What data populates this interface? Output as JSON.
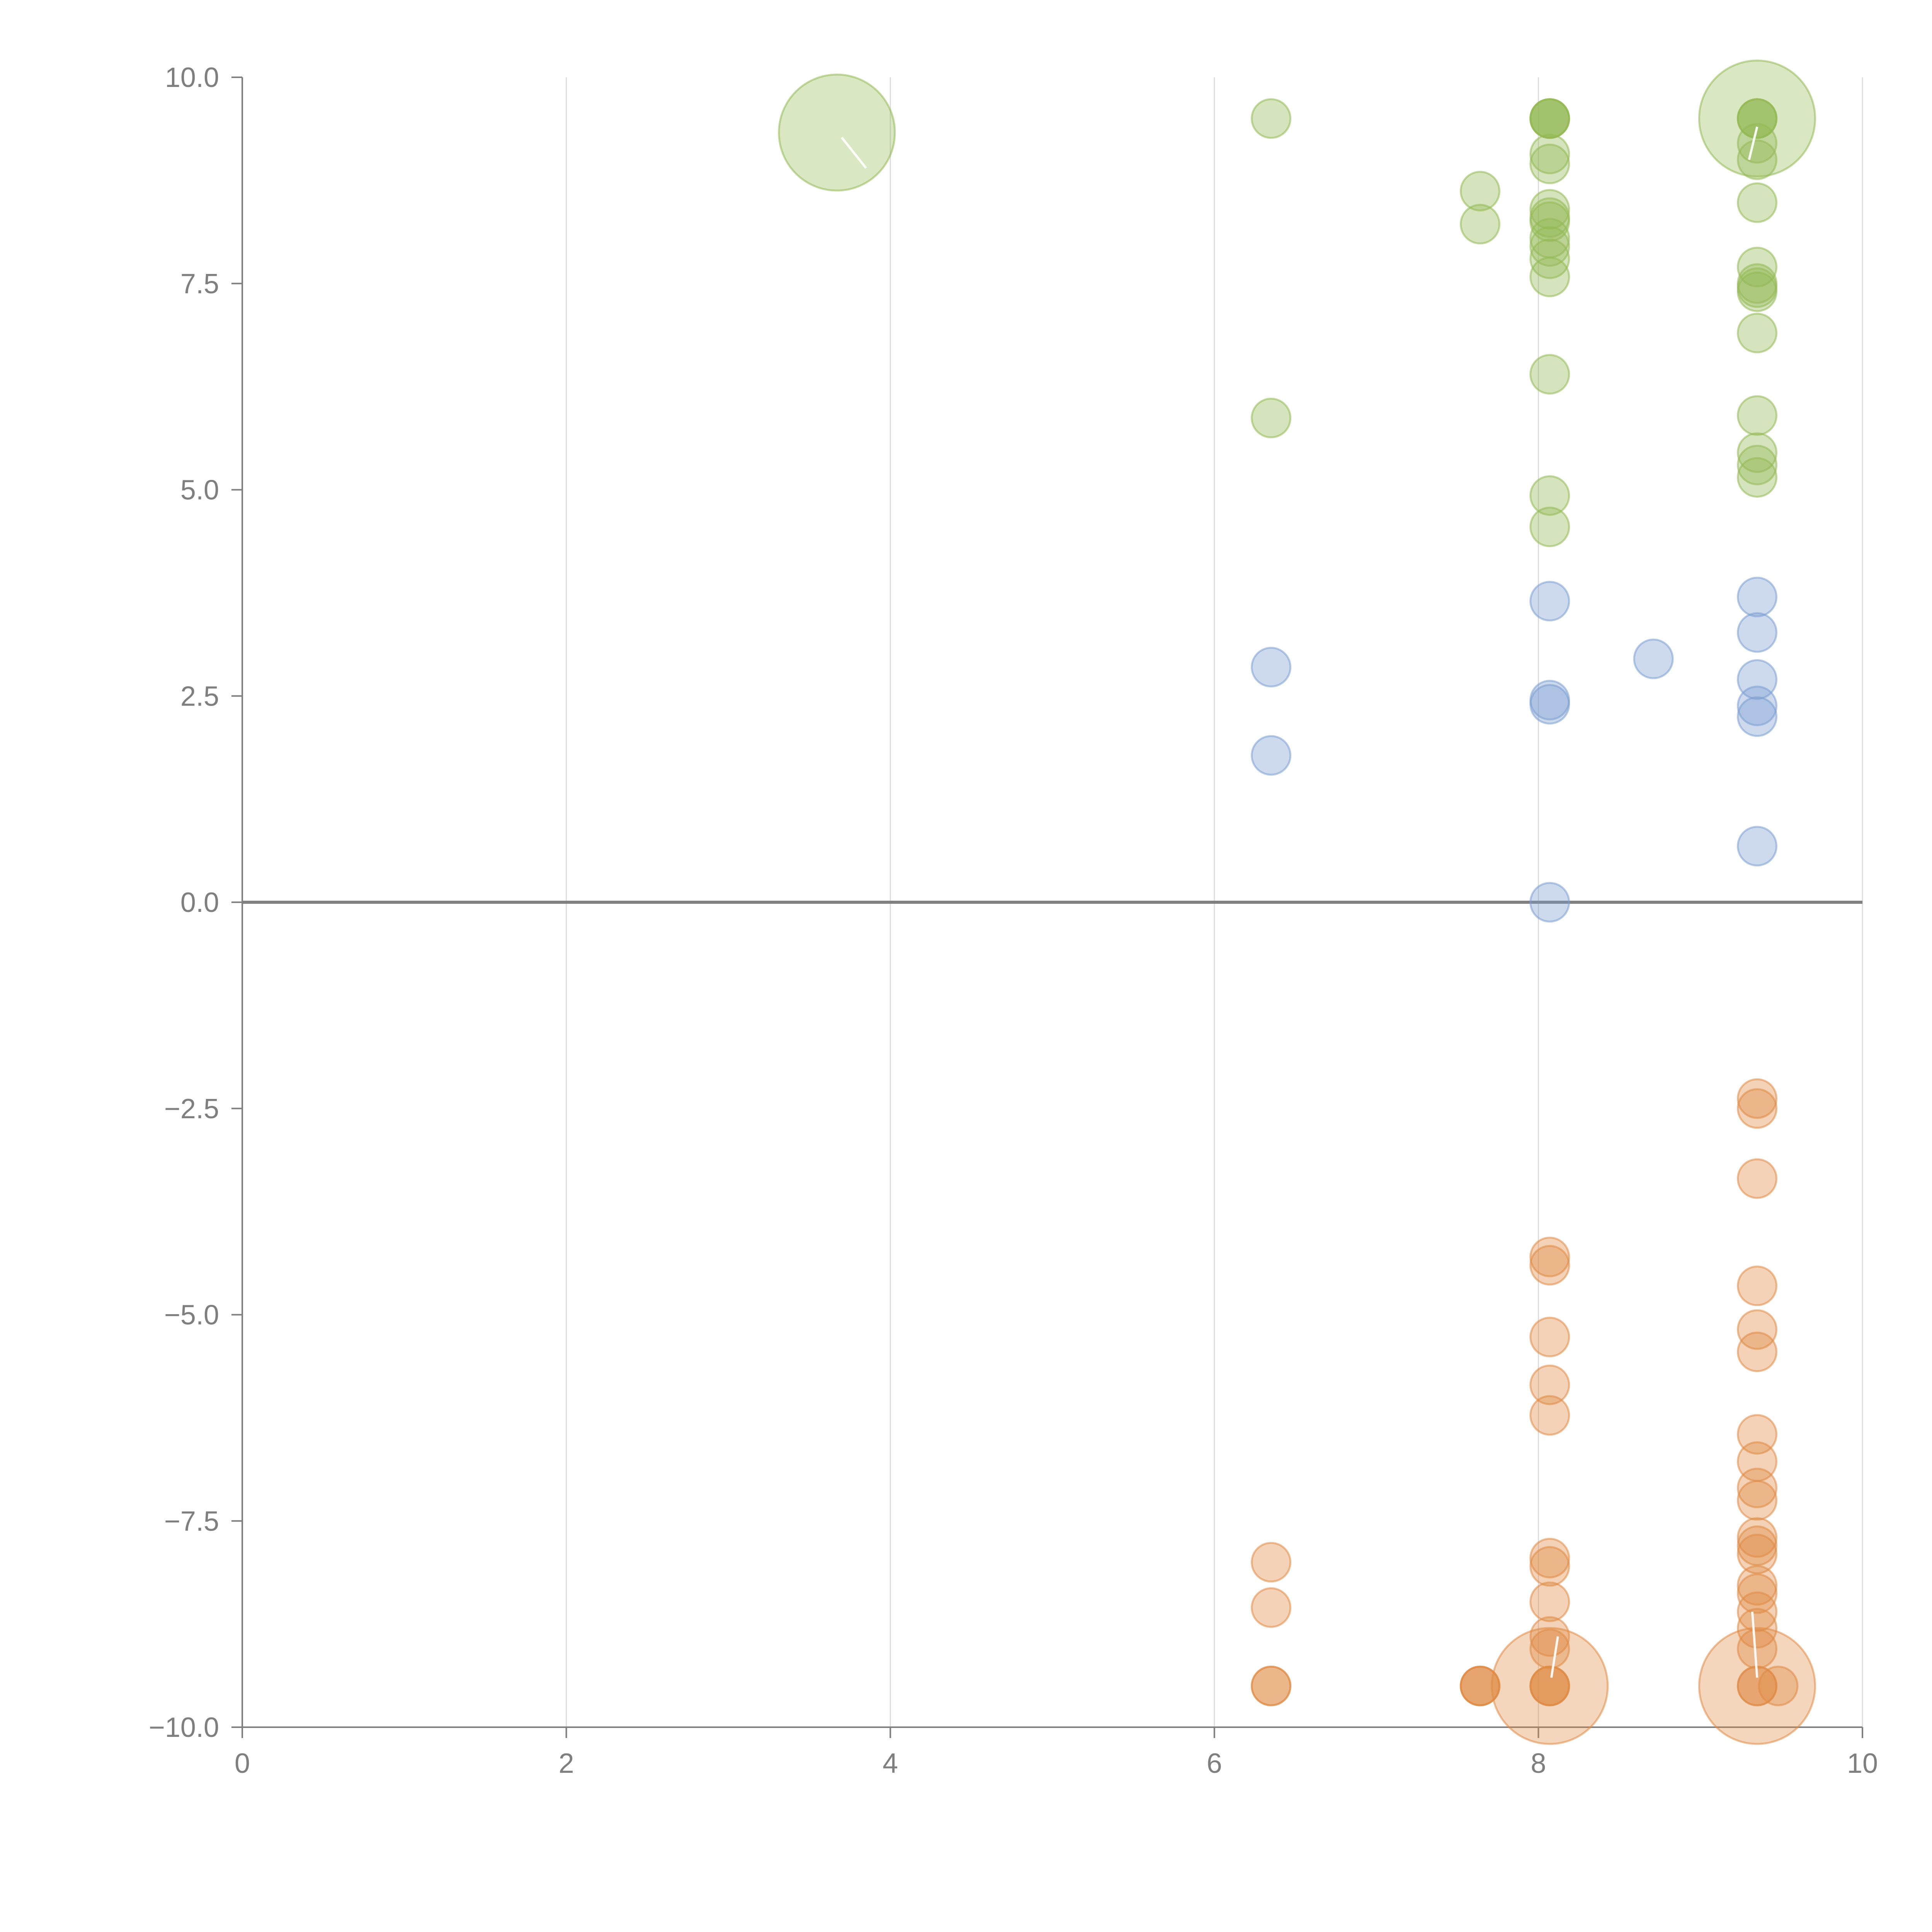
{
  "chart_data": {
    "type": "scatter",
    "title": "",
    "xlabel": "",
    "ylabel": "",
    "xlim": [
      0,
      10
    ],
    "ylim": [
      -10,
      10
    ],
    "x_ticks": [
      "0",
      "2",
      "4",
      "6",
      "8",
      "10"
    ],
    "y_ticks": [
      "10.0",
      "7.5",
      "5.0",
      "2.5",
      "0.0",
      "−2.5",
      "−5.0",
      "−7.5",
      "−10.0"
    ],
    "x_grid": true,
    "y_grid": false,
    "legend": "none",
    "colors": {
      "green": "#93b954",
      "blue": "#7b9fd2",
      "orange": "#e08a43"
    },
    "series": [
      {
        "color": "green",
        "points": [
          {
            "x": 3.67,
            "y": 9.33,
            "size": 3
          },
          {
            "x": 6.35,
            "y": 9.5
          },
          {
            "x": 6.35,
            "y": 5.87
          },
          {
            "x": 7.64,
            "y": 8.62
          },
          {
            "x": 7.64,
            "y": 8.22
          },
          {
            "x": 8.07,
            "y": 9.5
          },
          {
            "x": 8.07,
            "y": 9.5
          },
          {
            "x": 8.07,
            "y": 9.5
          },
          {
            "x": 8.07,
            "y": 9.5
          },
          {
            "x": 8.07,
            "y": 9.07
          },
          {
            "x": 8.07,
            "y": 8.95
          },
          {
            "x": 8.07,
            "y": 8.4
          },
          {
            "x": 8.07,
            "y": 8.3
          },
          {
            "x": 8.07,
            "y": 8.25
          },
          {
            "x": 8.07,
            "y": 8.05
          },
          {
            "x": 8.07,
            "y": 7.95
          },
          {
            "x": 8.07,
            "y": 7.8
          },
          {
            "x": 8.07,
            "y": 7.58
          },
          {
            "x": 8.07,
            "y": 6.4
          },
          {
            "x": 8.07,
            "y": 4.93
          },
          {
            "x": 8.07,
            "y": 4.55
          },
          {
            "x": 9.35,
            "y": 9.5,
            "size": 3
          },
          {
            "x": 9.35,
            "y": 9.5
          },
          {
            "x": 9.35,
            "y": 9.5
          },
          {
            "x": 9.35,
            "y": 9.5
          },
          {
            "x": 9.35,
            "y": 9.2
          },
          {
            "x": 9.35,
            "y": 9.0
          },
          {
            "x": 9.35,
            "y": 8.48
          },
          {
            "x": 9.35,
            "y": 7.7
          },
          {
            "x": 9.35,
            "y": 7.5
          },
          {
            "x": 9.35,
            "y": 7.45
          },
          {
            "x": 9.35,
            "y": 7.4
          },
          {
            "x": 9.35,
            "y": 6.9
          },
          {
            "x": 9.35,
            "y": 5.9
          },
          {
            "x": 9.35,
            "y": 5.45
          },
          {
            "x": 9.35,
            "y": 5.3
          },
          {
            "x": 9.35,
            "y": 5.15
          }
        ],
        "leaders": [
          {
            "x1": 3.7,
            "y1": 9.27,
            "x2": 3.85,
            "y2": 8.9
          },
          {
            "x1": 9.35,
            "y1": 9.4,
            "x2": 9.3,
            "y2": 9.0
          }
        ]
      },
      {
        "color": "blue",
        "points": [
          {
            "x": 6.35,
            "y": 2.85
          },
          {
            "x": 6.35,
            "y": 1.78
          },
          {
            "x": 8.07,
            "y": 3.65
          },
          {
            "x": 8.07,
            "y": 2.45
          },
          {
            "x": 8.07,
            "y": 2.4
          },
          {
            "x": 8.07,
            "y": 0.0
          },
          {
            "x": 8.71,
            "y": 2.95
          },
          {
            "x": 9.35,
            "y": 3.7
          },
          {
            "x": 9.35,
            "y": 3.27
          },
          {
            "x": 9.35,
            "y": 2.7
          },
          {
            "x": 9.35,
            "y": 2.38
          },
          {
            "x": 9.35,
            "y": 2.25
          },
          {
            "x": 9.35,
            "y": 0.68
          }
        ],
        "leaders": []
      },
      {
        "color": "orange",
        "points": [
          {
            "x": 6.35,
            "y": -8.0
          },
          {
            "x": 6.35,
            "y": -8.55
          },
          {
            "x": 6.35,
            "y": -9.5
          },
          {
            "x": 6.35,
            "y": -9.5
          },
          {
            "x": 7.64,
            "y": -9.5
          },
          {
            "x": 7.64,
            "y": -9.5
          },
          {
            "x": 7.64,
            "y": -9.5
          },
          {
            "x": 8.07,
            "y": -9.5,
            "size": 3
          },
          {
            "x": 8.07,
            "y": -9.5
          },
          {
            "x": 8.07,
            "y": -9.5
          },
          {
            "x": 8.07,
            "y": -9.5
          },
          {
            "x": 8.07,
            "y": -4.3
          },
          {
            "x": 8.07,
            "y": -4.4
          },
          {
            "x": 8.07,
            "y": -5.27
          },
          {
            "x": 8.07,
            "y": -5.85
          },
          {
            "x": 8.07,
            "y": -6.22
          },
          {
            "x": 8.07,
            "y": -7.95
          },
          {
            "x": 8.07,
            "y": -8.05
          },
          {
            "x": 8.07,
            "y": -8.48
          },
          {
            "x": 8.07,
            "y": -8.9
          },
          {
            "x": 8.07,
            "y": -9.05
          },
          {
            "x": 9.35,
            "y": -9.5,
            "size": 3
          },
          {
            "x": 9.35,
            "y": -9.5
          },
          {
            "x": 9.35,
            "y": -9.5
          },
          {
            "x": 9.48,
            "y": -9.5
          },
          {
            "x": 9.35,
            "y": -2.38
          },
          {
            "x": 9.35,
            "y": -2.5
          },
          {
            "x": 9.35,
            "y": -3.35
          },
          {
            "x": 9.35,
            "y": -4.65
          },
          {
            "x": 9.35,
            "y": -5.18
          },
          {
            "x": 9.35,
            "y": -5.45
          },
          {
            "x": 9.35,
            "y": -6.45
          },
          {
            "x": 9.35,
            "y": -6.78
          },
          {
            "x": 9.35,
            "y": -7.1
          },
          {
            "x": 9.35,
            "y": -7.25
          },
          {
            "x": 9.35,
            "y": -7.7
          },
          {
            "x": 9.35,
            "y": -7.8
          },
          {
            "x": 9.35,
            "y": -7.9
          },
          {
            "x": 9.35,
            "y": -8.28
          },
          {
            "x": 9.35,
            "y": -8.38
          },
          {
            "x": 9.35,
            "y": -8.6
          },
          {
            "x": 9.35,
            "y": -8.8
          },
          {
            "x": 9.35,
            "y": -9.05
          }
        ],
        "leaders": [
          {
            "x1": 8.08,
            "y1": -9.4,
            "x2": 8.12,
            "y2": -8.9
          },
          {
            "x1": 9.35,
            "y1": -9.4,
            "x2": 9.32,
            "y2": -8.6
          }
        ]
      }
    ]
  }
}
